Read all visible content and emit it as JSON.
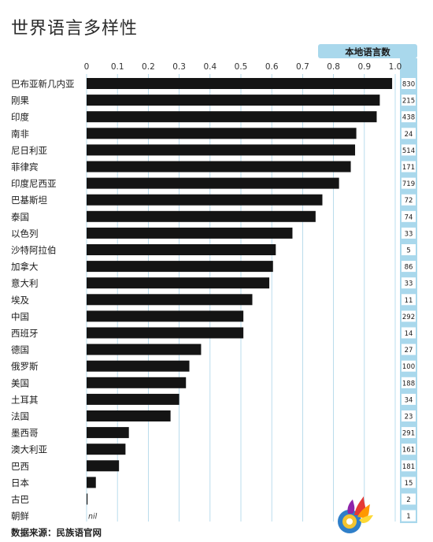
{
  "title": "世界语言多样性",
  "source": "数据来源：民族语官网",
  "chart_data": {
    "type": "bar",
    "orientation": "horizontal",
    "xlim": [
      0,
      1.0
    ],
    "ticks": [
      "0",
      "0.1",
      "0.2",
      "0.3",
      "0.4",
      "0.5",
      "0.6",
      "0.7",
      "0.8",
      "0.9",
      "1.0"
    ],
    "grid": true,
    "right_column_header": "本地语言数",
    "nil_label": "nil",
    "categories": [
      "巴布亚新几内亚",
      "刚果",
      "印度",
      "南非",
      "尼日利亚",
      "菲律宾",
      "印度尼西亚",
      "巴基斯坦",
      "泰国",
      "以色列",
      "沙特阿拉伯",
      "加拿大",
      "意大利",
      "埃及",
      "中国",
      "西班牙",
      "德国",
      "俄罗斯",
      "美国",
      "土耳其",
      "法国",
      "墨西哥",
      "澳大利亚",
      "巴西",
      "日本",
      "古巴",
      "朝鲜"
    ],
    "values": [
      0.99,
      0.95,
      0.94,
      0.874,
      0.87,
      0.856,
      0.818,
      0.764,
      0.742,
      0.667,
      0.613,
      0.604,
      0.592,
      0.537,
      0.508,
      0.508,
      0.371,
      0.333,
      0.322,
      0.3,
      0.272,
      0.137,
      0.126,
      0.105,
      0.03,
      0.002,
      0
    ],
    "language_counts": [
      "830",
      "215",
      "438",
      "24",
      "514",
      "171",
      "719",
      "72",
      "74",
      "33",
      "5",
      "86",
      "33",
      "11",
      "292",
      "14",
      "27",
      "100",
      "188",
      "34",
      "23",
      "291",
      "161",
      "181",
      "15",
      "2",
      "1"
    ],
    "bar_color": "#141414",
    "accent_color": "#a9d8ec",
    "grid_color": "#a9d4e8"
  }
}
